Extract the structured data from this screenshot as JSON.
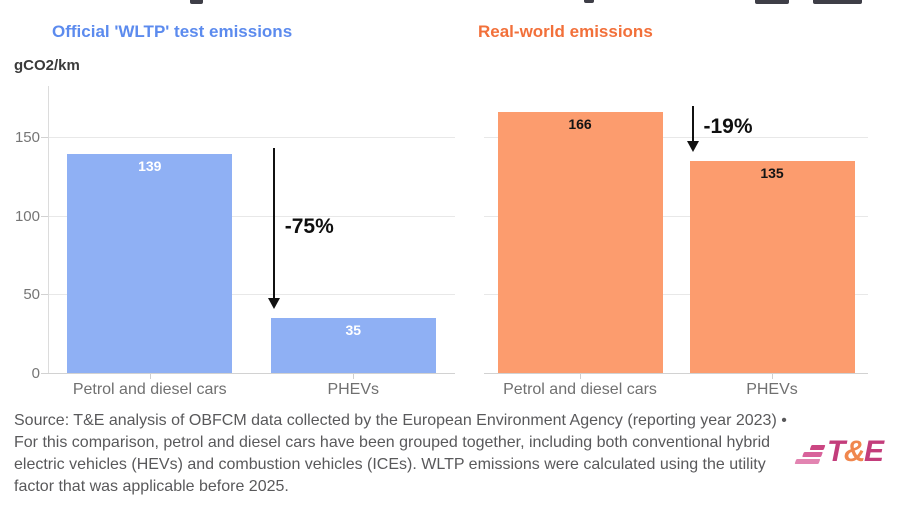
{
  "axis": {
    "unit_label": "gCO2/km"
  },
  "chart_data": [
    {
      "type": "bar",
      "panel": "wltp",
      "title": "Official 'WLTP' test emissions",
      "title_color": "#5c8bee",
      "categories": [
        "Petrol and diesel cars",
        "PHEVs"
      ],
      "values": [
        139,
        35
      ],
      "bar_color": "#8fb0f4",
      "value_label_color": "#ffffff",
      "ylabel": "gCO2/km",
      "ylim": [
        0,
        182
      ],
      "yticks": [
        0,
        50,
        100,
        150
      ],
      "grid": true,
      "legend": "none",
      "annotation": {
        "text": "-75%",
        "from_value": 139,
        "to_value": 35
      }
    },
    {
      "type": "bar",
      "panel": "real-world",
      "title": "Real-world emissions",
      "title_color": "#f2703a",
      "categories": [
        "Petrol and diesel cars",
        "PHEVs"
      ],
      "values": [
        166,
        135
      ],
      "bar_color": "#fc9c6e",
      "value_label_color": "#141414",
      "ylabel": "gCO2/km",
      "ylim": [
        0,
        182
      ],
      "yticks": [
        0,
        50,
        100,
        150
      ],
      "grid": true,
      "legend": "none",
      "annotation": {
        "text": "-19%",
        "from_value": 166,
        "to_value": 135
      }
    }
  ],
  "footer": {
    "source_lines": [
      "Source: T&E analysis of OBFCM data collected by the European Environment Agency (reporting year 2023) •",
      "For this comparison, petrol and diesel cars have been grouped together, including both conventional hybrid",
      "electric vehicles (HEVs) and combustion vehicles (ICEs). WLTP emissions were calculated using the utility",
      "factor that was applicable before 2025."
    ],
    "logo": {
      "t": "T",
      "amp": "&",
      "e": "E"
    }
  },
  "colors": {
    "blue_header": "#5c8bee",
    "blue_bar": "#8fb0f4",
    "orange_header": "#f2703a",
    "orange_bar": "#fc9c6e",
    "grid_line": "#e8e8e8",
    "axis_line": "#dcdcdc",
    "tick_label": "#757575",
    "category_label": "#707070",
    "annotation_text": "#0f0f0f",
    "source_text": "#59595b",
    "logo_magenta": "#c33d7b",
    "logo_orange": "#f0874e"
  }
}
